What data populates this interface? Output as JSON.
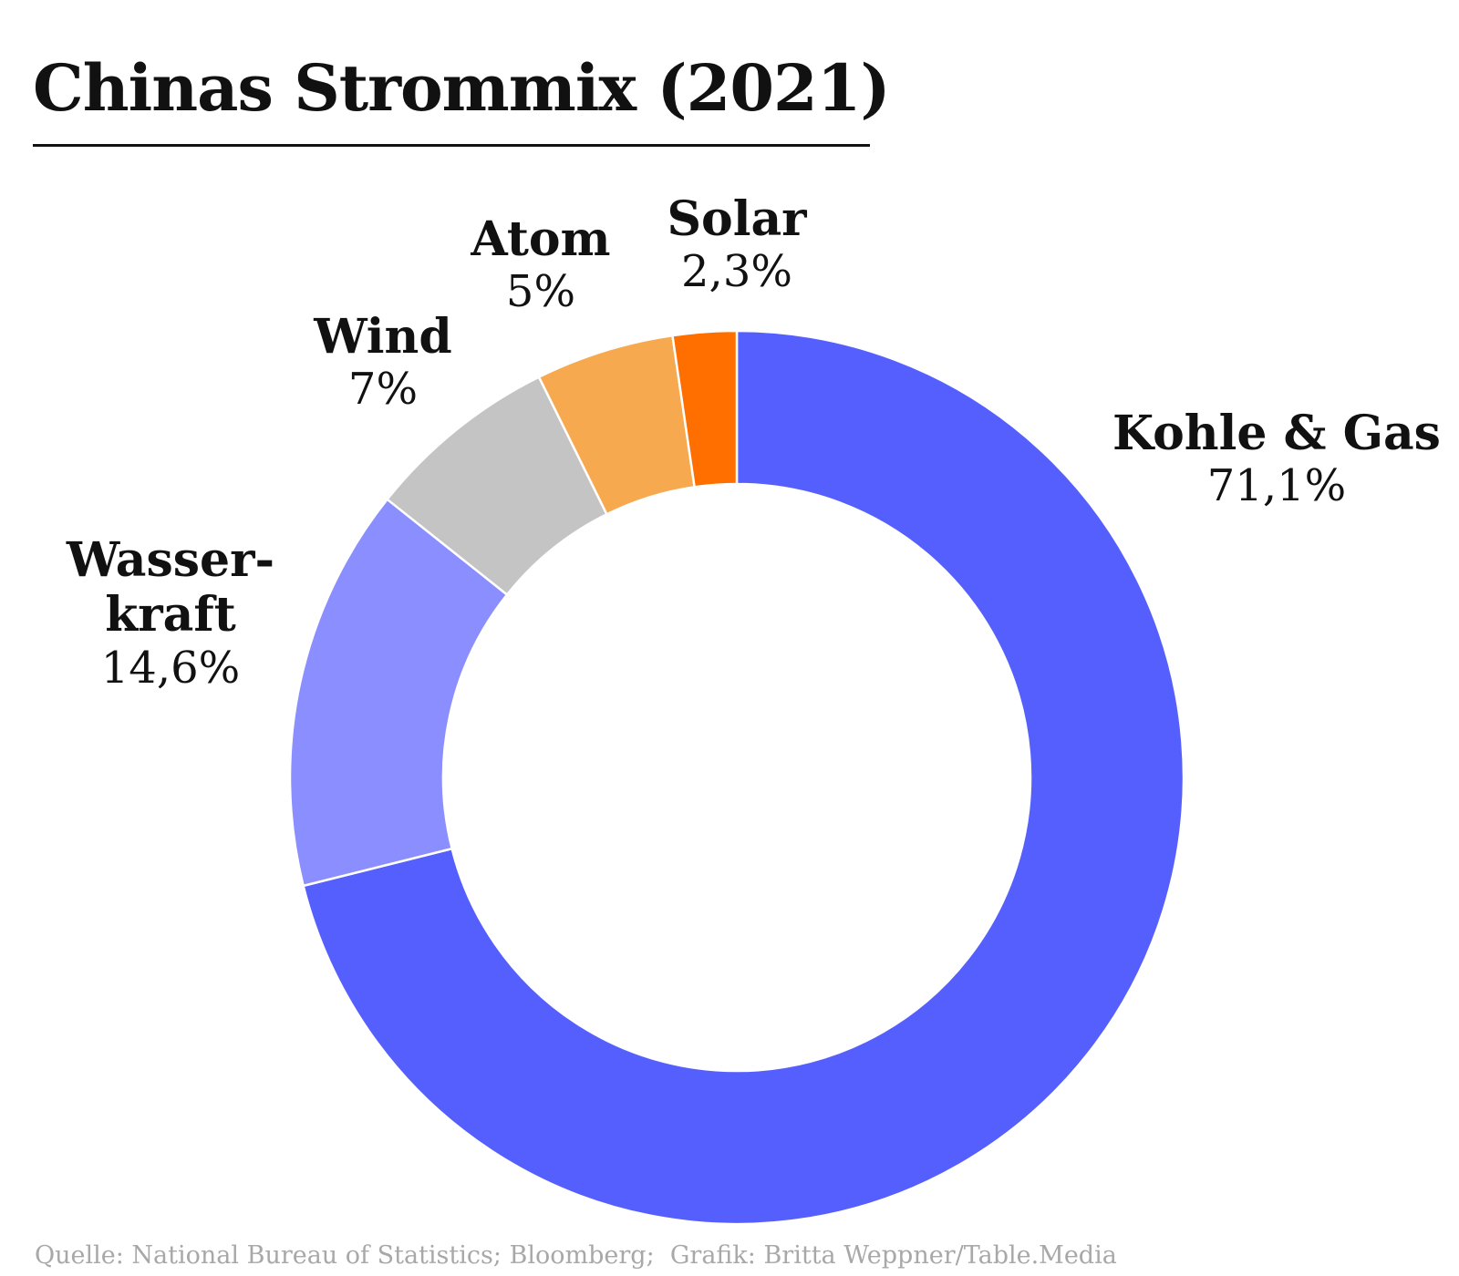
{
  "chart_data": {
    "type": "pie",
    "title": "Chinas Strommix (2021)",
    "donut": true,
    "categories": [
      "Kohle & Gas",
      "Wasserkraft",
      "Wind",
      "Atom",
      "Solar"
    ],
    "values": [
      71.1,
      14.6,
      7,
      5,
      2.3
    ],
    "slices": [
      {
        "key": "kohle-gas",
        "name": "Kohle & Gas",
        "name_lines": [
          "Kohle & Gas"
        ],
        "value": 71.1,
        "value_label": "71,1%",
        "color": "#545FFE"
      },
      {
        "key": "wasserkraft",
        "name": "Wasserkraft",
        "name_lines": [
          "Wasser-",
          "kraft"
        ],
        "value": 14.6,
        "value_label": "14,6%",
        "color": "#8A8EFE"
      },
      {
        "key": "wind",
        "name": "Wind",
        "name_lines": [
          "Wind"
        ],
        "value": 7,
        "value_label": "7%",
        "color": "#C4C4C4"
      },
      {
        "key": "atom",
        "name": "Atom",
        "name_lines": [
          "Atom"
        ],
        "value": 5,
        "value_label": "5%",
        "color": "#F6A94F"
      },
      {
        "key": "solar",
        "name": "Solar",
        "name_lines": [
          "Solar"
        ],
        "value": 2.3,
        "value_label": "2,3%",
        "color": "#FF6F00"
      }
    ],
    "legend": "none",
    "source": "Quelle: National Bureau of Statistics; Bloomberg;  Grafik: Britta Weppner/Table.Media"
  }
}
